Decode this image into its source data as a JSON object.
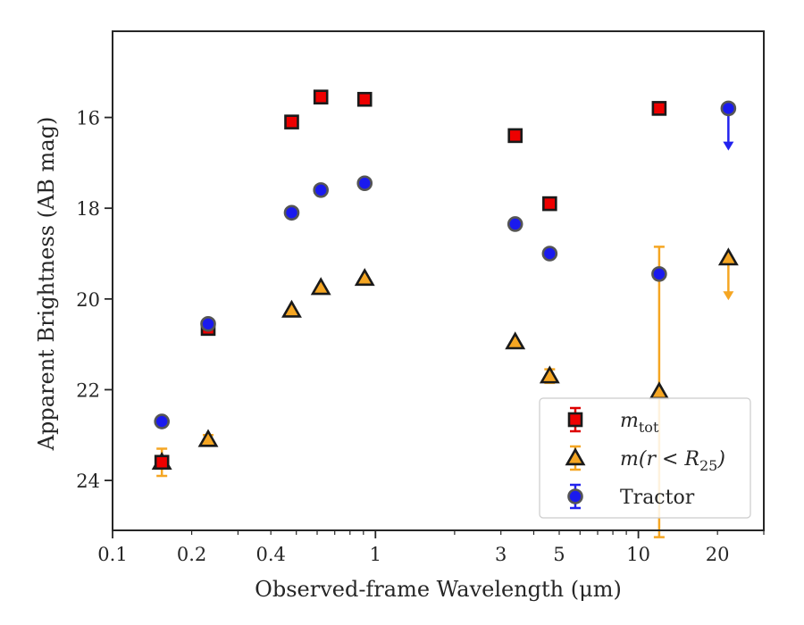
{
  "chart_data": {
    "type": "scatter",
    "xlabel": "Observed-frame Wavelength (μm)",
    "ylabel": "Apparent Brightness (AB mag)",
    "xscale": "log",
    "xlim": [
      0.1,
      30
    ],
    "ylim": [
      25.1,
      14.1
    ],
    "y_inverted": true,
    "grid": false,
    "legend_position": "lower-right",
    "xticks": [
      0.1,
      0.2,
      0.4,
      1,
      3,
      5,
      10,
      20
    ],
    "xtick_labels": [
      "0.1",
      "0.2",
      "0.4",
      "1",
      "3",
      "5",
      "10",
      "20"
    ],
    "yticks": [
      16,
      18,
      20,
      22,
      24
    ],
    "ytick_labels": [
      "16",
      "18",
      "20",
      "22",
      "24"
    ],
    "series": [
      {
        "name": "m_tot",
        "legend_main": "m",
        "legend_sub": "tot",
        "marker": "square",
        "color": "#ee0000",
        "edge_color": "#1a1a1a",
        "error_color": "#dd0000",
        "points": [
          {
            "x": 0.154,
            "y": 23.6,
            "err": 0.1
          },
          {
            "x": 0.231,
            "y": 20.65,
            "err": 0.1
          },
          {
            "x": 0.48,
            "y": 16.1,
            "err": 0.05
          },
          {
            "x": 0.62,
            "y": 15.55,
            "err": 0.05
          },
          {
            "x": 0.91,
            "y": 15.6,
            "err": 0.05
          },
          {
            "x": 3.4,
            "y": 16.4,
            "err": 0.05
          },
          {
            "x": 4.6,
            "y": 17.9,
            "err": 0.05
          },
          {
            "x": 12.0,
            "y": 15.8,
            "err": 0.05
          }
        ]
      },
      {
        "name": "m(r < R_25)",
        "legend_main": "m(r < R",
        "legend_sub": "25",
        "legend_tail": ")",
        "marker": "triangle",
        "color": "#f5a623",
        "edge_color": "#1a1a1a",
        "error_color": "#f5a623",
        "points": [
          {
            "x": 0.154,
            "y": 23.6,
            "err": 0.3
          },
          {
            "x": 0.231,
            "y": 23.1,
            "err": 0.1
          },
          {
            "x": 0.48,
            "y": 20.25,
            "err": 0.05
          },
          {
            "x": 0.62,
            "y": 19.75,
            "err": 0.05
          },
          {
            "x": 0.91,
            "y": 19.55,
            "err": 0.05
          },
          {
            "x": 3.4,
            "y": 20.95,
            "err": 0.05
          },
          {
            "x": 4.6,
            "y": 21.7,
            "err": 0.15
          },
          {
            "x": 12.0,
            "y": 22.05,
            "err": 3.2
          },
          {
            "x": 22.0,
            "y": 19.1,
            "upper_limit": true
          }
        ]
      },
      {
        "name": "Tractor",
        "legend_main": "Tractor",
        "marker": "circle",
        "color": "#1a1aee",
        "edge_color": "#555555",
        "error_color": "#2222ee",
        "points": [
          {
            "x": 0.154,
            "y": 22.7,
            "err": 0.05
          },
          {
            "x": 0.231,
            "y": 20.55,
            "err": 0.05
          },
          {
            "x": 0.48,
            "y": 18.1,
            "err": 0.05
          },
          {
            "x": 0.62,
            "y": 17.6,
            "err": 0.05
          },
          {
            "x": 0.91,
            "y": 17.45,
            "err": 0.05
          },
          {
            "x": 3.4,
            "y": 18.35,
            "err": 0.05
          },
          {
            "x": 4.6,
            "y": 19.0,
            "err": 0.05
          },
          {
            "x": 12.0,
            "y": 19.45,
            "err": 0.05
          },
          {
            "x": 22.0,
            "y": 15.8,
            "upper_limit": true
          }
        ]
      }
    ]
  }
}
